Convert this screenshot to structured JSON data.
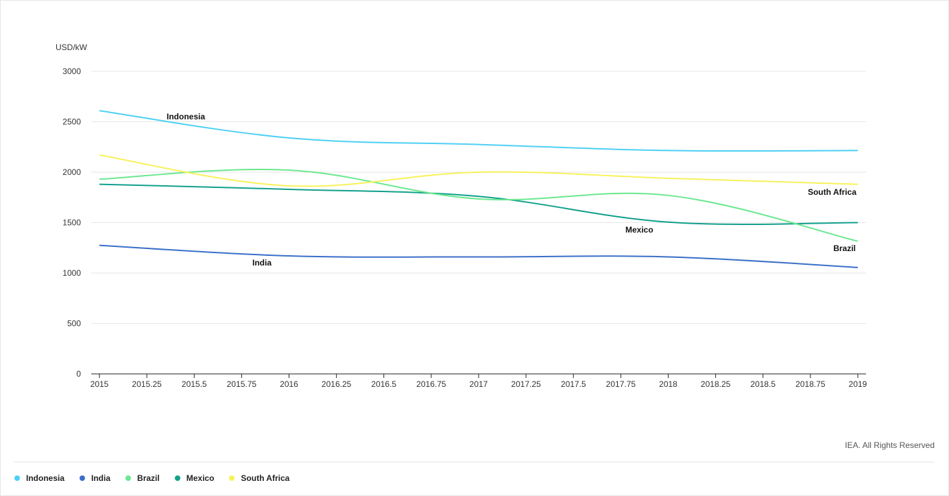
{
  "chart_data": {
    "type": "line",
    "ylabel": "USD/kW",
    "ylim": [
      0,
      3000
    ],
    "xlim": [
      2015,
      2019
    ],
    "yticks": [
      "0",
      "500",
      "1000",
      "1500",
      "2000",
      "2500",
      "3000"
    ],
    "xticks": [
      "2015",
      "2015.25",
      "2015.5",
      "2015.75",
      "2016",
      "2016.25",
      "2016.5",
      "2016.75",
      "2017",
      "2017.25",
      "2017.5",
      "2017.75",
      "2018",
      "2018.25",
      "2018.5",
      "2018.75",
      "2019"
    ],
    "grid": true,
    "legend_position": "bottom-left",
    "series": [
      {
        "name": "Indonesia",
        "color": "#4dd0f5",
        "x": [
          2015,
          2016,
          2017,
          2018,
          2019
        ],
        "values": [
          2610,
          2340,
          2275,
          2215,
          2215
        ]
      },
      {
        "name": "India",
        "color": "#3a6fc8",
        "x": [
          2015,
          2016,
          2017,
          2018,
          2019
        ],
        "values": [
          1275,
          1170,
          1160,
          1160,
          1055
        ]
      },
      {
        "name": "Brazil",
        "color": "#6be890",
        "x": [
          2015,
          2016,
          2017,
          2018,
          2019
        ],
        "values": [
          1930,
          2020,
          1735,
          1770,
          1315
        ]
      },
      {
        "name": "Mexico",
        "color": "#12a08c",
        "x": [
          2015,
          2016,
          2017,
          2018,
          2019
        ],
        "values": [
          1880,
          1830,
          1760,
          1505,
          1500
        ]
      },
      {
        "name": "South Africa",
        "color": "#f7f25c",
        "x": [
          2015,
          2016,
          2017,
          2018,
          2019
        ],
        "values": [
          2170,
          1865,
          2000,
          1940,
          1880
        ]
      }
    ],
    "annotations": [
      {
        "text": "Indonesia",
        "series": "Indonesia"
      },
      {
        "text": "India",
        "series": "India"
      },
      {
        "text": "Mexico",
        "series": "Mexico"
      },
      {
        "text": "South Africa",
        "series": "South Africa"
      },
      {
        "text": "Brazil",
        "series": "Brazil"
      }
    ]
  },
  "credit": "IEA. All Rights Reserved"
}
